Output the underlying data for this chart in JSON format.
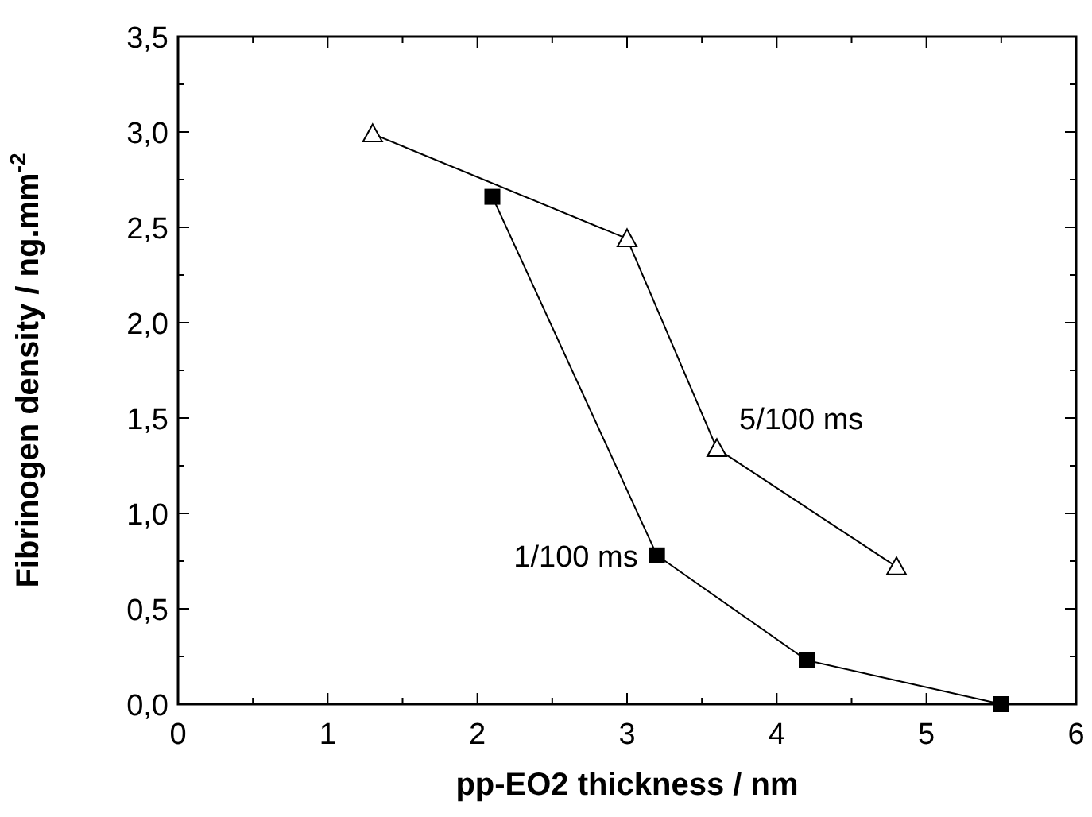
{
  "chart_data": {
    "type": "line",
    "xlabel": "pp-EO2 thickness / nm",
    "ylabel": "Fibrinogen density / ng.mm$^{-2}$",
    "xlim": [
      0,
      6
    ],
    "ylim": [
      0,
      3.5
    ],
    "xticks": [
      0,
      {
        "value": 0.5,
        "label": null
      },
      1,
      {
        "value": 1.5,
        "label": null
      },
      2,
      {
        "value": 2.5,
        "label": null
      },
      3,
      {
        "value": 3.5,
        "label": null
      },
      4,
      {
        "value": 4.5,
        "label": null
      },
      5,
      {
        "value": 5.5,
        "label": null
      },
      6
    ],
    "yticks": [
      {
        "value": 0,
        "label": "0,0"
      },
      {
        "value": 0.25,
        "label": null
      },
      {
        "value": 0.5,
        "label": "0,5"
      },
      {
        "value": 0.75,
        "label": null
      },
      {
        "value": 1,
        "label": "1,0"
      },
      {
        "value": 1.25,
        "label": null
      },
      {
        "value": 1.5,
        "label": "1,5"
      },
      {
        "value": 1.75,
        "label": null
      },
      {
        "value": 2,
        "label": "2,0"
      },
      {
        "value": 2.25,
        "label": null
      },
      {
        "value": 2.5,
        "label": "2,5"
      },
      {
        "value": 2.75,
        "label": null
      },
      {
        "value": 3,
        "label": "3,0"
      },
      {
        "value": 3.25,
        "label": null
      },
      {
        "value": 3.5,
        "label": "3,5"
      }
    ],
    "grid": false,
    "line_style": "solid",
    "series": [
      {
        "name": "5/100 ms",
        "color": "#000000",
        "marker": "triangle",
        "x": [
          1.3,
          3.0,
          3.6,
          4.8
        ],
        "values": [
          2.99,
          2.44,
          1.34,
          0.72
        ]
      },
      {
        "name": "1/100 ms",
        "color": "#000000",
        "marker": "square",
        "x": [
          2.1,
          3.2,
          4.2,
          5.5
        ],
        "values": [
          2.66,
          0.78,
          0.23,
          0.0
        ]
      }
    ]
  }
}
